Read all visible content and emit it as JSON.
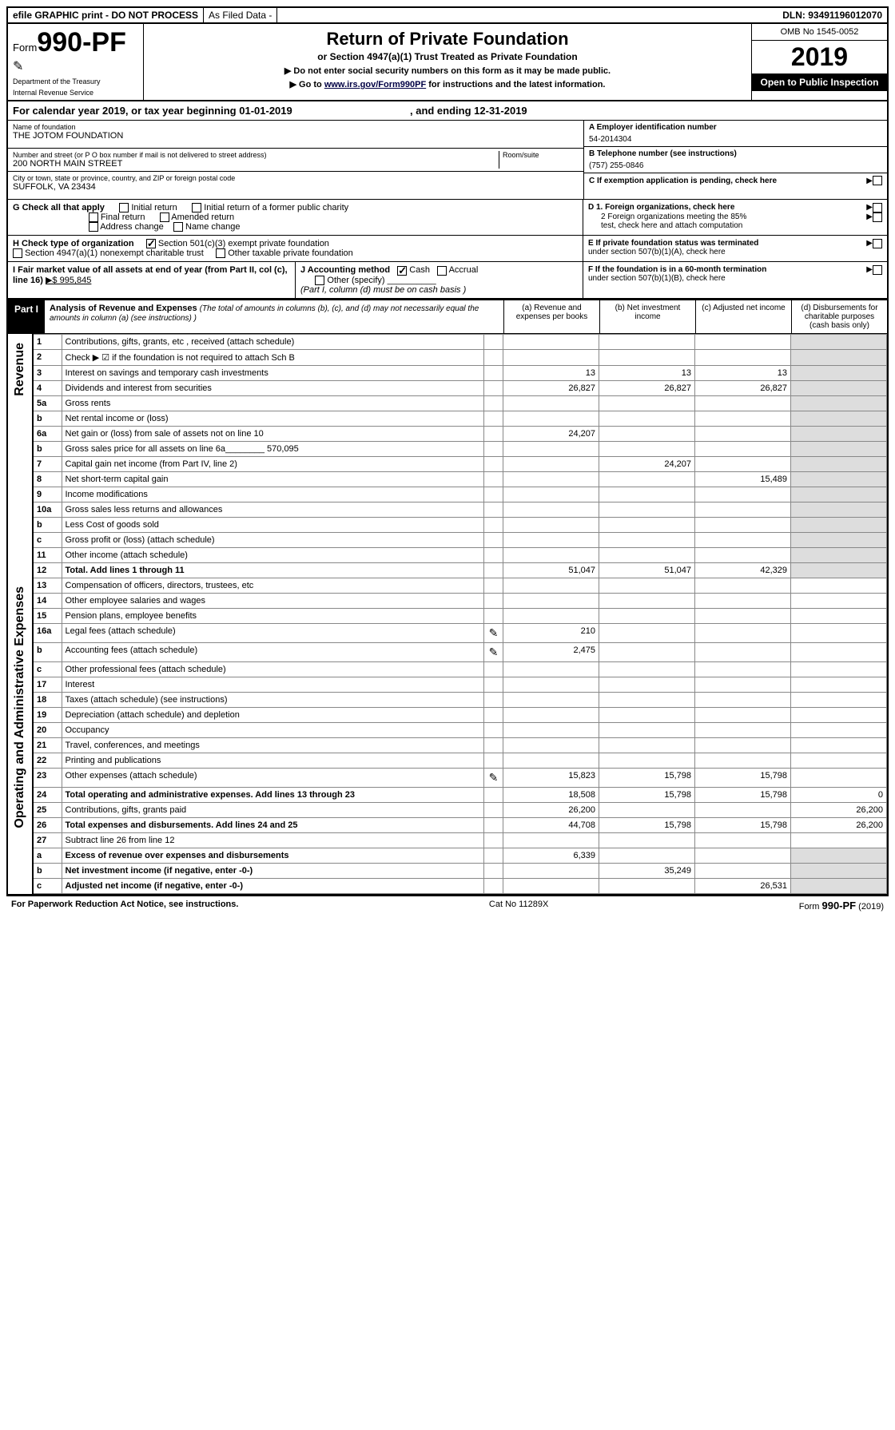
{
  "topbar": {
    "efile": "efile GRAPHIC print - DO NOT PROCESS",
    "asfiled": "As Filed Data -",
    "dln": "DLN: 93491196012070"
  },
  "header": {
    "form_prefix": "Form",
    "form_num": "990-PF",
    "dept1": "Department of the Treasury",
    "dept2": "Internal Revenue Service",
    "title": "Return of Private Foundation",
    "subtitle": "or Section 4947(a)(1) Trust Treated as Private Foundation",
    "note1": "▶ Do not enter social security numbers on this form as it may be made public.",
    "note2_a": "▶ Go to ",
    "note2_link": "www.irs.gov/Form990PF",
    "note2_b": " for instructions and the latest information.",
    "omb": "OMB No 1545-0052",
    "year": "2019",
    "inspect": "Open to Public Inspection"
  },
  "calyear": {
    "prefix": "For calendar year 2019, or tax year beginning ",
    "begin": "01-01-2019",
    "mid": ", and ending ",
    "end": "12-31-2019"
  },
  "foundation": {
    "name_lbl": "Name of foundation",
    "name": "THE JOTOM FOUNDATION",
    "addr_lbl": "Number and street (or P O  box number if mail is not delivered to street address)",
    "room_lbl": "Room/suite",
    "addr": "200 NORTH MAIN STREET",
    "city_lbl": "City or town, state or province, country, and ZIP or foreign postal code",
    "city": "SUFFOLK, VA  23434"
  },
  "right": {
    "A_lbl": "A Employer identification number",
    "A_val": "54-2014304",
    "B_lbl": "B Telephone number (see instructions)",
    "B_val": "(757) 255-0846",
    "C_lbl": "C If exemption application is pending, check here",
    "D1": "D 1. Foreign organizations, check here",
    "D2a": "2  Foreign organizations meeting the 85%",
    "D2b": "test, check here and attach computation",
    "E1": "E  If private foundation status was terminated",
    "E2": "under section 507(b)(1)(A), check here",
    "F1": "F  If the foundation is in a 60-month termination",
    "F2": "under section 507(b)(1)(B), check here"
  },
  "G": {
    "label": "G Check all that apply",
    "opts": [
      "Initial return",
      "Initial return of a former public charity",
      "Final return",
      "Amended return",
      "Address change",
      "Name change"
    ]
  },
  "H": {
    "label": "H Check type of organization",
    "opt1": "Section 501(c)(3) exempt private foundation",
    "opt2": "Section 4947(a)(1) nonexempt charitable trust",
    "opt3": "Other taxable private foundation"
  },
  "I": {
    "label": "I Fair market value of all assets at end of year (from Part II, col  (c), line 16)",
    "value": "▶$  995,845"
  },
  "J": {
    "label": "J Accounting method",
    "cash": "Cash",
    "accrual": "Accrual",
    "other": "Other (specify)",
    "note": "(Part I, column (d) must be on cash basis )"
  },
  "part1": {
    "tag": "Part I",
    "title": "Analysis of Revenue and Expenses",
    "note": "(The total of amounts in columns (b), (c), and (d) may not necessarily equal the amounts in column (a) (see instructions) )",
    "cols": {
      "a": "(a)   Revenue and expenses per books",
      "b": "(b)  Net investment income",
      "c": "(c)  Adjusted net income",
      "d": "(d)  Disbursements for charitable purposes (cash basis only)"
    }
  },
  "rows": [
    {
      "n": "1",
      "d": "Contributions, gifts, grants, etc , received (attach schedule)"
    },
    {
      "n": "2",
      "d": "Check ▶ ☑ if the foundation is not required to attach Sch  B"
    },
    {
      "n": "3",
      "d": "Interest on savings and temporary cash investments",
      "a": "13",
      "b": "13",
      "c": "13"
    },
    {
      "n": "4",
      "d": "Dividends and interest from securities",
      "a": "26,827",
      "b": "26,827",
      "c": "26,827"
    },
    {
      "n": "5a",
      "d": "Gross rents"
    },
    {
      "n": "b",
      "d": "Net rental income or (loss)"
    },
    {
      "n": "6a",
      "d": "Net gain or (loss) from sale of assets not on line 10",
      "a": "24,207"
    },
    {
      "n": "b",
      "d": "Gross sales price for all assets on line 6a________ 570,095"
    },
    {
      "n": "7",
      "d": "Capital gain net income (from Part IV, line 2)",
      "b": "24,207"
    },
    {
      "n": "8",
      "d": "Net short-term capital gain",
      "c": "15,489"
    },
    {
      "n": "9",
      "d": "Income modifications"
    },
    {
      "n": "10a",
      "d": "Gross sales less returns and allowances"
    },
    {
      "n": "b",
      "d": "Less  Cost of goods sold"
    },
    {
      "n": "c",
      "d": "Gross profit or (loss) (attach schedule)"
    },
    {
      "n": "11",
      "d": "Other income (attach schedule)"
    },
    {
      "n": "12",
      "d": "Total. Add lines 1 through 11",
      "bold": true,
      "a": "51,047",
      "b": "51,047",
      "c": "42,329"
    },
    {
      "n": "13",
      "d": "Compensation of officers, directors, trustees, etc"
    },
    {
      "n": "14",
      "d": "Other employee salaries and wages"
    },
    {
      "n": "15",
      "d": "Pension plans, employee benefits"
    },
    {
      "n": "16a",
      "d": "Legal fees (attach schedule)",
      "icon": true,
      "a": "210"
    },
    {
      "n": "b",
      "d": "Accounting fees (attach schedule)",
      "icon": true,
      "a": "2,475"
    },
    {
      "n": "c",
      "d": "Other professional fees (attach schedule)"
    },
    {
      "n": "17",
      "d": "Interest"
    },
    {
      "n": "18",
      "d": "Taxes (attach schedule) (see instructions)"
    },
    {
      "n": "19",
      "d": "Depreciation (attach schedule) and depletion"
    },
    {
      "n": "20",
      "d": "Occupancy"
    },
    {
      "n": "21",
      "d": "Travel, conferences, and meetings"
    },
    {
      "n": "22",
      "d": "Printing and publications"
    },
    {
      "n": "23",
      "d": "Other expenses (attach schedule)",
      "icon": true,
      "a": "15,823",
      "b": "15,798",
      "c": "15,798"
    },
    {
      "n": "24",
      "d": "Total operating and administrative expenses. Add lines 13 through 23",
      "bold": true,
      "a": "18,508",
      "b": "15,798",
      "c": "15,798",
      "dd": "0"
    },
    {
      "n": "25",
      "d": "Contributions, gifts, grants paid",
      "a": "26,200",
      "dd": "26,200"
    },
    {
      "n": "26",
      "d": "Total expenses and disbursements. Add lines 24 and 25",
      "bold": true,
      "a": "44,708",
      "b": "15,798",
      "c": "15,798",
      "dd": "26,200"
    },
    {
      "n": "27",
      "d": "Subtract line 26 from line 12"
    },
    {
      "n": "a",
      "d": "Excess of revenue over expenses and disbursements",
      "bold": true,
      "a": "6,339"
    },
    {
      "n": "b",
      "d": "Net investment income (if negative, enter -0-)",
      "bold": true,
      "b": "35,249"
    },
    {
      "n": "c",
      "d": "Adjusted net income (if negative, enter -0-)",
      "bold": true,
      "c": "26,531"
    }
  ],
  "side_labels": {
    "revenue": "Revenue",
    "expenses": "Operating and Administrative Expenses"
  },
  "footer": {
    "left": "For Paperwork Reduction Act Notice, see instructions.",
    "mid": "Cat  No  11289X",
    "right_a": "Form ",
    "right_b": "990-PF",
    "right_c": " (2019)"
  },
  "colors": {
    "black": "#000000",
    "white": "#ffffff",
    "shade": "#dddddd"
  }
}
